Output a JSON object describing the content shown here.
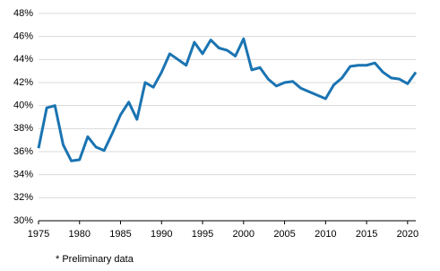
{
  "chart_data": {
    "type": "line",
    "x": [
      1975,
      1976,
      1977,
      1978,
      1979,
      1980,
      1981,
      1982,
      1983,
      1984,
      1985,
      1986,
      1987,
      1988,
      1989,
      1990,
      1991,
      1992,
      1993,
      1994,
      1995,
      1996,
      1997,
      1998,
      1999,
      2000,
      2001,
      2002,
      2003,
      2004,
      2005,
      2006,
      2007,
      2008,
      2009,
      2010,
      2011,
      2012,
      2013,
      2014,
      2015,
      2016,
      2017,
      2018,
      2019,
      2020,
      2021
    ],
    "values": [
      36.3,
      39.8,
      40.0,
      36.6,
      35.2,
      35.3,
      37.3,
      36.4,
      36.1,
      37.6,
      39.2,
      40.3,
      38.8,
      42.0,
      41.6,
      42.9,
      44.5,
      44.0,
      43.5,
      45.5,
      44.5,
      45.7,
      45.0,
      44.8,
      44.3,
      45.8,
      43.1,
      43.3,
      42.3,
      41.7,
      42.0,
      42.1,
      41.5,
      41.2,
      40.9,
      40.6,
      41.8,
      42.4,
      43.4,
      43.5,
      43.5,
      43.7,
      42.9,
      42.4,
      42.3,
      41.9,
      42.9
    ],
    "color": "#1a74b2",
    "xlim": [
      1975,
      2021
    ],
    "xticks": [
      1975,
      1980,
      1985,
      1990,
      1995,
      2000,
      2005,
      2010,
      2015,
      2020
    ],
    "ylim": [
      30,
      48
    ],
    "yticks": [
      {
        "value": 30,
        "label": "30%"
      },
      {
        "value": 32,
        "label": "32%"
      },
      {
        "value": 34,
        "label": "34%"
      },
      {
        "value": 36,
        "label": "36%"
      },
      {
        "value": 38,
        "label": "38%"
      },
      {
        "value": 40,
        "label": "40%"
      },
      {
        "value": 42,
        "label": "42%"
      },
      {
        "value": 44,
        "label": "44%"
      },
      {
        "value": 46,
        "label": "46%"
      },
      {
        "value": 48,
        "label": "48%"
      }
    ],
    "grid": true,
    "footnote": "* Preliminary data"
  }
}
